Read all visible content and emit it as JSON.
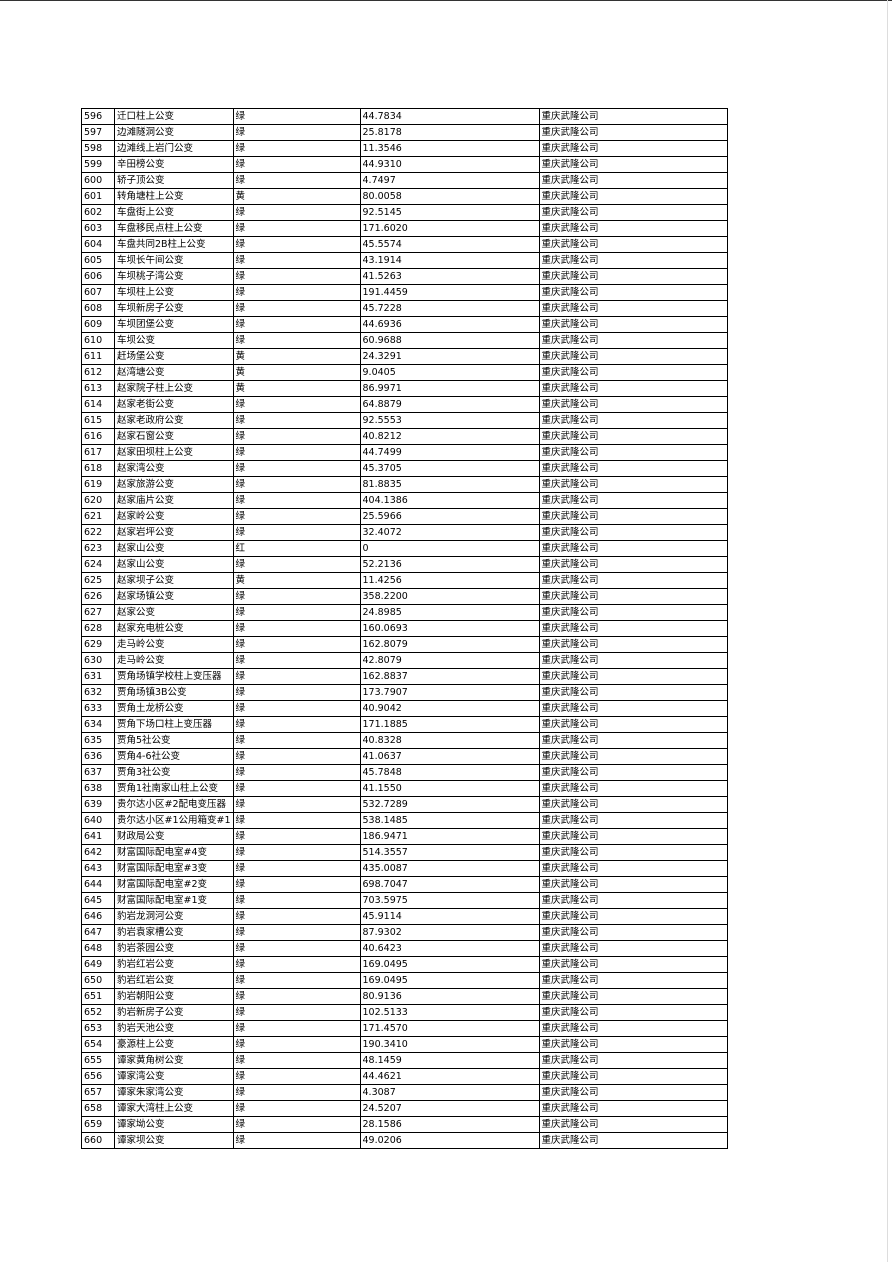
{
  "table": {
    "rows": [
      [
        "596",
        "迁口柱上公变",
        "绿",
        "44.7834",
        "重庆武隆公司"
      ],
      [
        "597",
        "边滩隧洞公变",
        "绿",
        "25.8178",
        "重庆武隆公司"
      ],
      [
        "598",
        "边滩线上岩门公变",
        "绿",
        "11.3546",
        "重庆武隆公司"
      ],
      [
        "599",
        "辛田榜公变",
        "绿",
        "44.9310",
        "重庆武隆公司"
      ],
      [
        "600",
        "轿子顶公变",
        "绿",
        "4.7497",
        "重庆武隆公司"
      ],
      [
        "601",
        "转角塘柱上公变",
        "黄",
        "80.0058",
        "重庆武隆公司"
      ],
      [
        "602",
        "车盘街上公变",
        "绿",
        "92.5145",
        "重庆武隆公司"
      ],
      [
        "603",
        "车盘移民点柱上公变",
        "绿",
        "171.6020",
        "重庆武隆公司"
      ],
      [
        "604",
        "车盘共同2B柱上公变",
        "绿",
        "45.5574",
        "重庆武隆公司"
      ],
      [
        "605",
        "车坝长午间公变",
        "绿",
        "43.1914",
        "重庆武隆公司"
      ],
      [
        "606",
        "车坝桃子湾公变",
        "绿",
        "41.5263",
        "重庆武隆公司"
      ],
      [
        "607",
        "车坝柱上公变",
        "绿",
        "191.4459",
        "重庆武隆公司"
      ],
      [
        "608",
        "车坝新房子公变",
        "绿",
        "45.7228",
        "重庆武隆公司"
      ],
      [
        "609",
        "车坝团堡公变",
        "绿",
        "44.6936",
        "重庆武隆公司"
      ],
      [
        "610",
        "车坝公变",
        "绿",
        "60.9688",
        "重庆武隆公司"
      ],
      [
        "611",
        "赶场堡公变",
        "黄",
        "24.3291",
        "重庆武隆公司"
      ],
      [
        "612",
        "赵湾塘公变",
        "黄",
        "9.0405",
        "重庆武隆公司"
      ],
      [
        "613",
        "赵家院子柱上公变",
        "黄",
        "86.9971",
        "重庆武隆公司"
      ],
      [
        "614",
        "赵家老街公变",
        "绿",
        "64.8879",
        "重庆武隆公司"
      ],
      [
        "615",
        "赵家老政府公变",
        "绿",
        "92.5553",
        "重庆武隆公司"
      ],
      [
        "616",
        "赵家石窗公变",
        "绿",
        "40.8212",
        "重庆武隆公司"
      ],
      [
        "617",
        "赵家田坝柱上公变",
        "绿",
        "44.7499",
        "重庆武隆公司"
      ],
      [
        "618",
        "赵家湾公变",
        "绿",
        "45.3705",
        "重庆武隆公司"
      ],
      [
        "619",
        "赵家旅游公变",
        "绿",
        "81.8835",
        "重庆武隆公司"
      ],
      [
        "620",
        "赵家庙片公变",
        "绿",
        "404.1386",
        "重庆武隆公司"
      ],
      [
        "621",
        "赵家岭公变",
        "绿",
        "25.5966",
        "重庆武隆公司"
      ],
      [
        "622",
        "赵家岩坪公变",
        "绿",
        "32.4072",
        "重庆武隆公司"
      ],
      [
        "623",
        "赵家山公变",
        "红",
        "0",
        "重庆武隆公司"
      ],
      [
        "624",
        "赵家山公变",
        "绿",
        "52.2136",
        "重庆武隆公司"
      ],
      [
        "625",
        "赵家坝子公变",
        "黄",
        "11.4256",
        "重庆武隆公司"
      ],
      [
        "626",
        "赵家场镇公变",
        "绿",
        "358.2200",
        "重庆武隆公司"
      ],
      [
        "627",
        "赵家公变",
        "绿",
        "24.8985",
        "重庆武隆公司"
      ],
      [
        "628",
        "赵家充电桩公变",
        "绿",
        "160.0693",
        "重庆武隆公司"
      ],
      [
        "629",
        "走马岭公变",
        "绿",
        "162.8079",
        "重庆武隆公司"
      ],
      [
        "630",
        "走马岭公变",
        "绿",
        "42.8079",
        "重庆武隆公司"
      ],
      [
        "631",
        "贾角场镇学校柱上变压器",
        "绿",
        "162.8837",
        "重庆武隆公司"
      ],
      [
        "632",
        "贾角场镇3B公变",
        "绿",
        "173.7907",
        "重庆武隆公司"
      ],
      [
        "633",
        "贾角土龙桥公变",
        "绿",
        "40.9042",
        "重庆武隆公司"
      ],
      [
        "634",
        "贾角下场口柱上变压器",
        "绿",
        "171.1885",
        "重庆武隆公司"
      ],
      [
        "635",
        "贾角5社公变",
        "绿",
        "40.8328",
        "重庆武隆公司"
      ],
      [
        "636",
        "贾角4-6社公变",
        "绿",
        "41.0637",
        "重庆武隆公司"
      ],
      [
        "637",
        "贾角3社公变",
        "绿",
        "45.7848",
        "重庆武隆公司"
      ],
      [
        "638",
        "贾角1社南家山柱上公变",
        "绿",
        "41.1550",
        "重庆武隆公司"
      ],
      [
        "639",
        "贵尔达小区#2配电变压器",
        "绿",
        "532.7289",
        "重庆武隆公司"
      ],
      [
        "640",
        "贵尔达小区#1公用箱变#1",
        "绿",
        "538.1485",
        "重庆武隆公司"
      ],
      [
        "641",
        "财政局公变",
        "绿",
        "186.9471",
        "重庆武隆公司"
      ],
      [
        "642",
        "财富国际配电室#4变",
        "绿",
        "514.3557",
        "重庆武隆公司"
      ],
      [
        "643",
        "财富国际配电室#3变",
        "绿",
        "435.0087",
        "重庆武隆公司"
      ],
      [
        "644",
        "财富国际配电室#2变",
        "绿",
        "698.7047",
        "重庆武隆公司"
      ],
      [
        "645",
        "财富国际配电室#1变",
        "绿",
        "703.5975",
        "重庆武隆公司"
      ],
      [
        "646",
        "豹岩龙洞河公变",
        "绿",
        "45.9114",
        "重庆武隆公司"
      ],
      [
        "647",
        "豹岩袁家槽公变",
        "绿",
        "87.9302",
        "重庆武隆公司"
      ],
      [
        "648",
        "豹岩茶园公变",
        "绿",
        "40.6423",
        "重庆武隆公司"
      ],
      [
        "649",
        "豹岩红岩公变",
        "绿",
        "169.0495",
        "重庆武隆公司"
      ],
      [
        "650",
        "豹岩红岩公变",
        "绿",
        "169.0495",
        "重庆武隆公司"
      ],
      [
        "651",
        "豹岩朝阳公变",
        "绿",
        "80.9136",
        "重庆武隆公司"
      ],
      [
        "652",
        "豹岩新房子公变",
        "绿",
        "102.5133",
        "重庆武隆公司"
      ],
      [
        "653",
        "豹岩天池公变",
        "绿",
        "171.4570",
        "重庆武隆公司"
      ],
      [
        "654",
        "豪源柱上公变",
        "绿",
        "190.3410",
        "重庆武隆公司"
      ],
      [
        "655",
        "谭家黄角树公变",
        "绿",
        "48.1459",
        "重庆武隆公司"
      ],
      [
        "656",
        "谭家湾公变",
        "绿",
        "44.4621",
        "重庆武隆公司"
      ],
      [
        "657",
        "谭家朱家湾公变",
        "绿",
        "4.3087",
        "重庆武隆公司"
      ],
      [
        "658",
        "谭家大湾柱上公变",
        "绿",
        "24.5207",
        "重庆武隆公司"
      ],
      [
        "659",
        "谭家坳公变",
        "绿",
        "28.1586",
        "重庆武隆公司"
      ],
      [
        "660",
        "谭家坝公变",
        "绿",
        "49.0206",
        "重庆武隆公司"
      ]
    ]
  }
}
